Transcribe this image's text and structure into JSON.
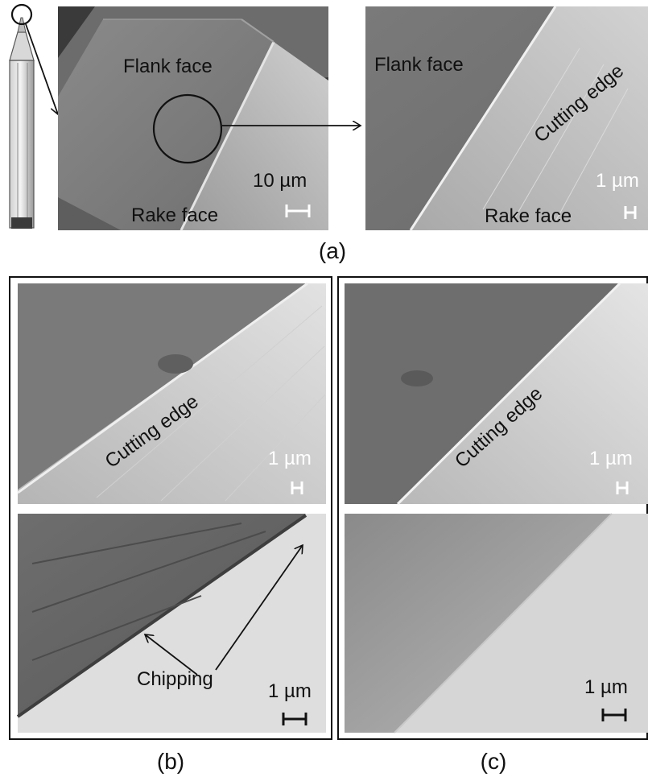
{
  "panel_a": {
    "caption": "(a)",
    "overview": {
      "flank_label": "Flank face",
      "rake_label": "Rake face",
      "scale_label": "10 µm"
    },
    "zoom": {
      "flank_label": "Flank face",
      "edge_label": "Cutting edge",
      "rake_label": "Rake face",
      "scale_label": "1 µm"
    }
  },
  "panel_b": {
    "caption": "(b)",
    "top": {
      "edge_label": "Cutting edge",
      "scale_label": "1 µm"
    },
    "bottom": {
      "chipping_label": "Chipping",
      "scale_label": "1 µm"
    }
  },
  "panel_c": {
    "caption": "(c)",
    "top": {
      "edge_label": "Cutting edge",
      "scale_label": "1 µm"
    },
    "bottom": {
      "scale_label": "1 µm"
    }
  },
  "colors": {
    "flank": "#7d7d7d",
    "rake": "#c8c8c8",
    "background_dark": "#3c3c3c",
    "border": "#111111"
  }
}
